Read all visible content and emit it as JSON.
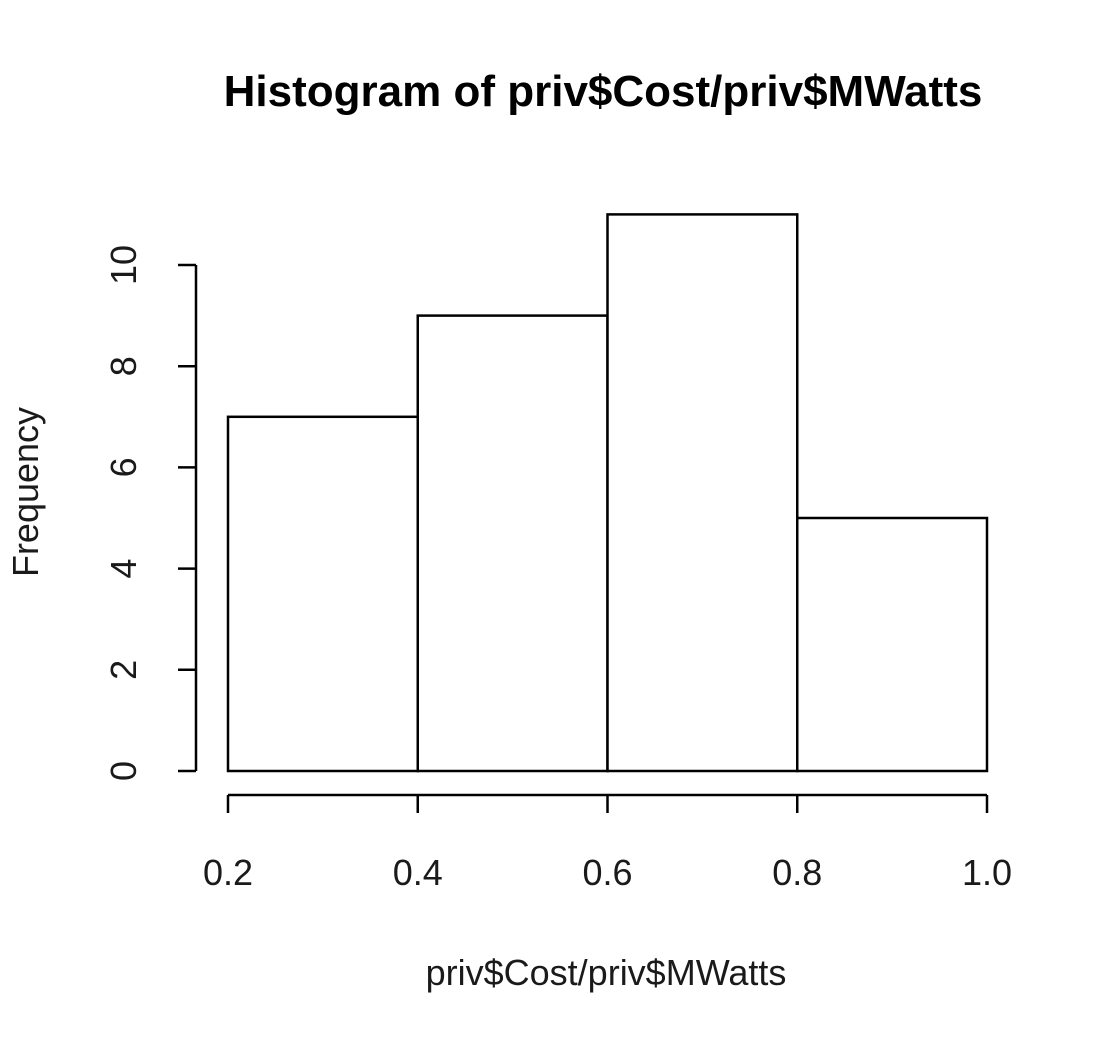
{
  "chart_data": {
    "type": "bar",
    "title": "Histogram of priv$Cost/priv$MWatts",
    "xlabel": "priv$Cost/priv$MWatts",
    "ylabel": "Frequency",
    "bins": [
      {
        "from": 0.2,
        "to": 0.4,
        "count": 7
      },
      {
        "from": 0.4,
        "to": 0.6,
        "count": 9
      },
      {
        "from": 0.6,
        "to": 0.8,
        "count": 11
      },
      {
        "from": 0.8,
        "to": 1.0,
        "count": 5
      }
    ],
    "xlim": [
      0.2,
      1.0
    ],
    "ylim": [
      0,
      10
    ],
    "x_ticks": [
      "0.2",
      "0.4",
      "0.6",
      "0.8",
      "1.0"
    ],
    "y_ticks": [
      "0",
      "2",
      "4",
      "6",
      "8",
      "10"
    ],
    "grid": false,
    "colors": {
      "bar_fill": "#ffffff",
      "bar_stroke": "#000000"
    }
  }
}
